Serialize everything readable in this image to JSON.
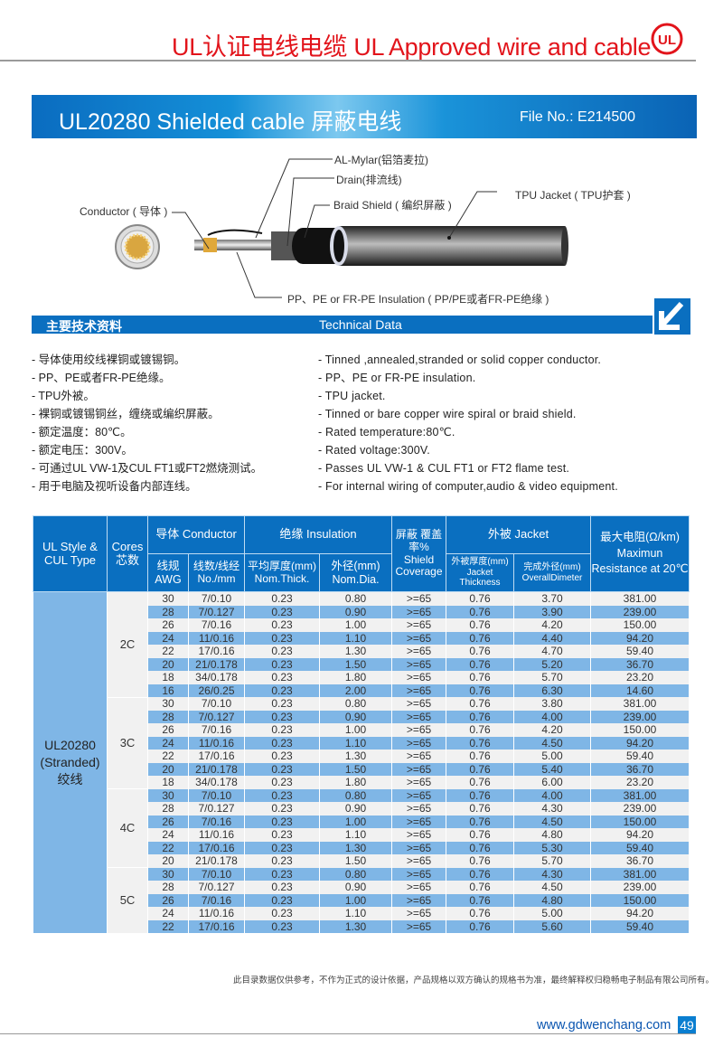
{
  "header": {
    "title": "UL认证电线电缆  UL Approved wire and cable",
    "logo_text": "UL",
    "brand_color": "#e2141b"
  },
  "banner": {
    "title": "UL20280  Shielded cable  屏蔽电线",
    "file_no": "File No.: E214500"
  },
  "diagram": {
    "al_mylar": "AL-Mylar(铝箔麦拉)",
    "drain": "Drain(排流线)",
    "braid": "Braid  Shield ( 编织屏蔽 )",
    "jacket": "TPU Jacket ( TPU护套 )",
    "conductor": "Conductor ( 导体 )",
    "insulation": "PP、PE or FR-PE Insulation ( PP/PE或者FR-PE绝缘 )"
  },
  "tech": {
    "title_cn": "主要技术资料",
    "title_en": "Technical Data",
    "left": [
      "- 导体使用绞线裸铜或镀锡铜。",
      "- PP、PE或者FR-PE绝缘。",
      "- TPU外被。",
      "- 裸铜或镀锡铜丝，缠绕或编织屏蔽。",
      "- 额定温度：80℃。",
      "- 额定电压：300V。",
      "- 可通过UL VW-1及CUL FT1或FT2燃烧测试。",
      "- 用于电脑及视听设备内部连线。"
    ],
    "right": [
      "- Tinned ,annealed,stranded or solid copper conductor.",
      "- PP、PE or FR-PE insulation.",
      "- TPU jacket.",
      "- Tinned or bare copper wire spiral or braid shield.",
      "- Rated temperature:80℃.",
      "- Rated voltage:300V.",
      "- Passes UL VW-1 & CUL FT1 or FT2 flame test.",
      "- For internal wiring of computer,audio & video equipment."
    ]
  },
  "table": {
    "headers": {
      "style": "UL Style & CUL Type",
      "cores": "Cores 芯数",
      "conductor": "导体 Conductor",
      "insulation": "绝缘 Insulation",
      "shield": "屏蔽 覆盖率% Shield Coverage",
      "jacket": "外被 Jacket",
      "resistance": "最大电阻(Ω/km) Maximun Resistance at 20℃",
      "awg": "线规 AWG",
      "no_mm": "线数/线经 No./mm",
      "thick": "平均厚度(mm) Nom.Thick.",
      "dia": "外径(mm) Nom.Dia.",
      "jthick": "外被厚度(mm) Jacket Thickness",
      "odia": "完成外径(mm) OverallDimeter"
    },
    "style_value": "UL20280 (Stranded) 绞线",
    "groups": [
      {
        "cores": "2C",
        "rows": [
          [
            "30",
            "7/0.10",
            "0.23",
            "0.80",
            ">=65",
            "0.76",
            "3.70",
            "381.00"
          ],
          [
            "28",
            "7/0.127",
            "0.23",
            "0.90",
            ">=65",
            "0.76",
            "3.90",
            "239.00"
          ],
          [
            "26",
            "7/0.16",
            "0.23",
            "1.00",
            ">=65",
            "0.76",
            "4.20",
            "150.00"
          ],
          [
            "24",
            "11/0.16",
            "0.23",
            "1.10",
            ">=65",
            "0.76",
            "4.40",
            "94.20"
          ],
          [
            "22",
            "17/0.16",
            "0.23",
            "1.30",
            ">=65",
            "0.76",
            "4.70",
            "59.40"
          ],
          [
            "20",
            "21/0.178",
            "0.23",
            "1.50",
            ">=65",
            "0.76",
            "5.20",
            "36.70"
          ],
          [
            "18",
            "34/0.178",
            "0.23",
            "1.80",
            ">=65",
            "0.76",
            "5.70",
            "23.20"
          ],
          [
            "16",
            "26/0.25",
            "0.23",
            "2.00",
            ">=65",
            "0.76",
            "6.30",
            "14.60"
          ]
        ]
      },
      {
        "cores": "3C",
        "rows": [
          [
            "30",
            "7/0.10",
            "0.23",
            "0.80",
            ">=65",
            "0.76",
            "3.80",
            "381.00"
          ],
          [
            "28",
            "7/0.127",
            "0.23",
            "0.90",
            ">=65",
            "0.76",
            "4.00",
            "239.00"
          ],
          [
            "26",
            "7/0.16",
            "0.23",
            "1.00",
            ">=65",
            "0.76",
            "4.20",
            "150.00"
          ],
          [
            "24",
            "11/0.16",
            "0.23",
            "1.10",
            ">=65",
            "0.76",
            "4.50",
            "94.20"
          ],
          [
            "22",
            "17/0.16",
            "0.23",
            "1.30",
            ">=65",
            "0.76",
            "5.00",
            "59.40"
          ],
          [
            "20",
            "21/0.178",
            "0.23",
            "1.50",
            ">=65",
            "0.76",
            "5.40",
            "36.70"
          ],
          [
            "18",
            "34/0.178",
            "0.23",
            "1.80",
            ">=65",
            "0.76",
            "6.00",
            "23.20"
          ]
        ]
      },
      {
        "cores": "4C",
        "rows": [
          [
            "30",
            "7/0.10",
            "0.23",
            "0.80",
            ">=65",
            "0.76",
            "4.00",
            "381.00"
          ],
          [
            "28",
            "7/0.127",
            "0.23",
            "0.90",
            ">=65",
            "0.76",
            "4.30",
            "239.00"
          ],
          [
            "26",
            "7/0.16",
            "0.23",
            "1.00",
            ">=65",
            "0.76",
            "4.50",
            "150.00"
          ],
          [
            "24",
            "11/0.16",
            "0.23",
            "1.10",
            ">=65",
            "0.76",
            "4.80",
            "94.20"
          ],
          [
            "22",
            "17/0.16",
            "0.23",
            "1.30",
            ">=65",
            "0.76",
            "5.30",
            "59.40"
          ],
          [
            "20",
            "21/0.178",
            "0.23",
            "1.50",
            ">=65",
            "0.76",
            "5.70",
            "36.70"
          ]
        ]
      },
      {
        "cores": "5C",
        "rows": [
          [
            "30",
            "7/0.10",
            "0.23",
            "0.80",
            ">=65",
            "0.76",
            "4.30",
            "381.00"
          ],
          [
            "28",
            "7/0.127",
            "0.23",
            "0.90",
            ">=65",
            "0.76",
            "4.50",
            "239.00"
          ],
          [
            "26",
            "7/0.16",
            "0.23",
            "1.00",
            ">=65",
            "0.76",
            "4.80",
            "150.00"
          ],
          [
            "24",
            "11/0.16",
            "0.23",
            "1.10",
            ">=65",
            "0.76",
            "5.00",
            "94.20"
          ],
          [
            "22",
            "17/0.16",
            "0.23",
            "1.30",
            ">=65",
            "0.76",
            "5.60",
            "59.40"
          ]
        ]
      }
    ]
  },
  "footer": {
    "disclaimer": "此目录数据仅供参考，不作为正式的设计依据，产品规格以双方确认的规格书为准，最终解释权归稳畅电子制品有限公司所有。",
    "website": "www.gdwenchang.com",
    "page": "49"
  }
}
